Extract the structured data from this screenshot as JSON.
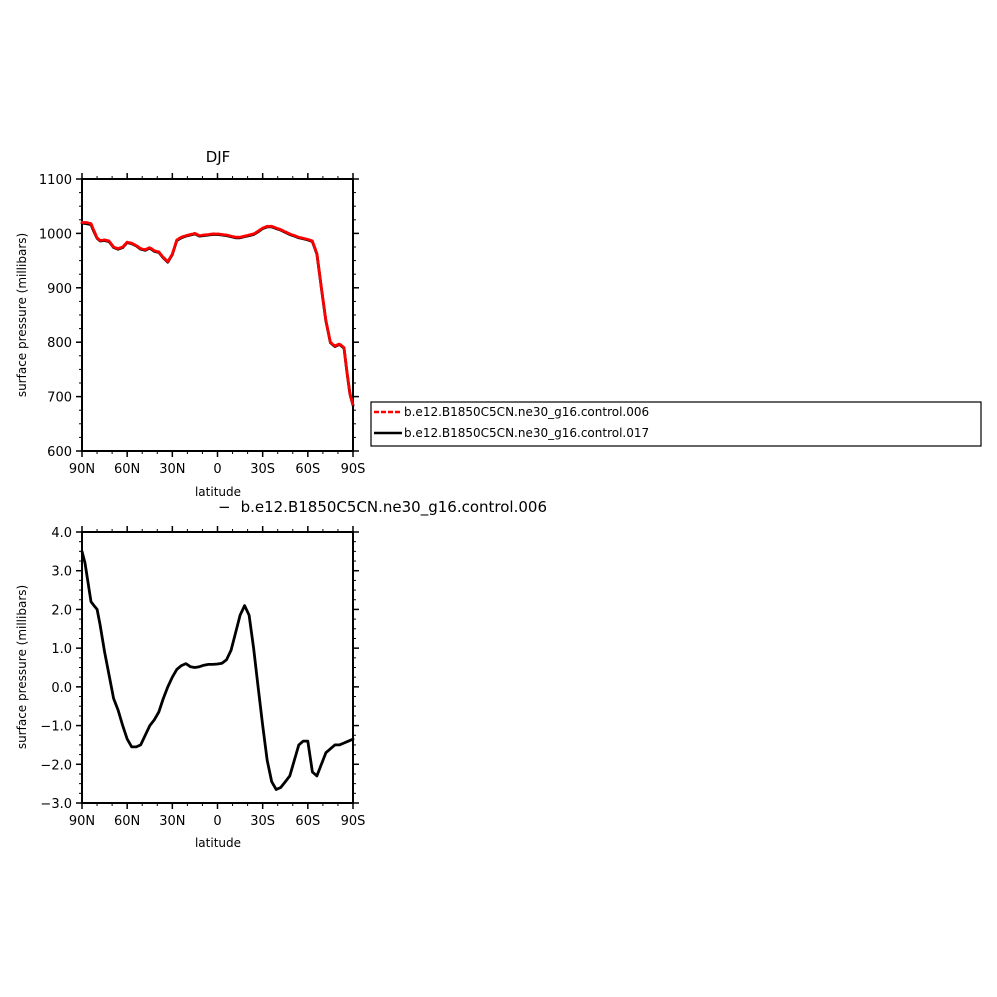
{
  "chart_data": [
    {
      "type": "line",
      "title": "DJF",
      "xlabel": "latitude",
      "ylabel": "surface pressure (millibars)",
      "xlim": [
        90,
        -90
      ],
      "ylim": [
        600,
        1100
      ],
      "x_ticks": [
        90,
        60,
        30,
        0,
        -30,
        -60,
        -90
      ],
      "x_tick_labels": [
        "90N",
        "60N",
        "30N",
        "0",
        "30S",
        "60S",
        "90S"
      ],
      "y_ticks": [
        600,
        700,
        800,
        900,
        1000,
        1100
      ],
      "y_tick_labels": [
        "600",
        "700",
        "800",
        "900",
        "1000",
        "1100"
      ],
      "grid": false,
      "legend": {
        "placement": "right",
        "entries": [
          "b.e12.B1850C5CN.ne30_g16.control.006",
          "b.e12.B1850C5CN.ne30_g16.control.017"
        ]
      },
      "series": [
        {
          "name": "b.e12.B1850C5CN.ne30_g16.control.006",
          "color": "#ff0000",
          "dash": true,
          "x": [
            90,
            87,
            84,
            82,
            80,
            78,
            75,
            72,
            69,
            66,
            63,
            60,
            57,
            54,
            51,
            48,
            45,
            42,
            39,
            36,
            33,
            30,
            27,
            24,
            21,
            18,
            15,
            12,
            9,
            6,
            3,
            0,
            -3,
            -6,
            -9,
            -12,
            -15,
            -18,
            -21,
            -24,
            -27,
            -30,
            -33,
            -36,
            -39,
            -42,
            -45,
            -48,
            -51,
            -54,
            -57,
            -60,
            -63,
            -66,
            -69,
            -72,
            -75,
            -78,
            -81,
            -84,
            -86,
            -88,
            -90
          ],
          "y": [
            1020,
            1020,
            1018,
            1005,
            992,
            987,
            988,
            986,
            975,
            972,
            975,
            984,
            982,
            978,
            972,
            970,
            974,
            968,
            966,
            956,
            948,
            962,
            988,
            993,
            996,
            998,
            1000,
            996,
            997,
            998,
            999,
            999,
            998,
            997,
            995,
            993,
            993,
            995,
            997,
            999,
            1004,
            1010,
            1013,
            1013,
            1010,
            1007,
            1003,
            999,
            996,
            993,
            991,
            989,
            986,
            963,
            900,
            840,
            800,
            793,
            797,
            790,
            745,
            705,
            685
          ]
        },
        {
          "name": "b.e12.B1850C5CN.ne30_g16.control.017",
          "color": "#000000",
          "dash": false,
          "x": [
            90,
            87,
            84,
            82,
            80,
            78,
            75,
            72,
            69,
            66,
            63,
            60,
            57,
            54,
            51,
            48,
            45,
            42,
            39,
            36,
            33,
            30,
            27,
            24,
            21,
            18,
            15,
            12,
            9,
            6,
            3,
            0,
            -3,
            -6,
            -9,
            -12,
            -15,
            -18,
            -21,
            -24,
            -27,
            -30,
            -33,
            -36,
            -39,
            -42,
            -45,
            -48,
            -51,
            -54,
            -57,
            -60,
            -63,
            -66,
            -69,
            -72,
            -75,
            -78,
            -81,
            -84,
            -86,
            -88,
            -90
          ],
          "y": [
            1019,
            1018,
            1016,
            1003,
            991,
            986,
            987,
            985,
            974,
            971,
            974,
            983,
            981,
            977,
            971,
            969,
            973,
            967,
            965,
            955,
            947,
            961,
            987,
            992,
            995,
            997,
            999,
            995,
            996,
            997,
            998,
            998,
            997,
            996,
            994,
            992,
            992,
            994,
            996,
            998,
            1003,
            1009,
            1012,
            1012,
            1009,
            1006,
            1002,
            998,
            995,
            992,
            990,
            988,
            985,
            962,
            899,
            839,
            799,
            792,
            796,
            789,
            744,
            704,
            684
          ]
        }
      ]
    },
    {
      "type": "line",
      "title": "b.e12.B1850C5CN.ne30_g16.control.006",
      "title_prefix": "−",
      "xlabel": "latitude",
      "ylabel": "surface pressure (millibars)",
      "xlim": [
        90,
        -90
      ],
      "ylim": [
        -3.0,
        4.0
      ],
      "x_ticks": [
        90,
        60,
        30,
        0,
        -30,
        -60,
        -90
      ],
      "x_tick_labels": [
        "90N",
        "60N",
        "30N",
        "0",
        "30S",
        "60S",
        "90S"
      ],
      "y_ticks": [
        -3.0,
        -2.0,
        -1.0,
        0.0,
        1.0,
        2.0,
        3.0,
        4.0
      ],
      "y_tick_labels": [
        "−3.0",
        "−2.0",
        "−1.0",
        "0.0",
        "1.0",
        "2.0",
        "3.0",
        "4.0"
      ],
      "grid": false,
      "series": [
        {
          "color": "#000000",
          "dash": false,
          "x": [
            90,
            88,
            86,
            84,
            82,
            80,
            78,
            75,
            72,
            69,
            66,
            63,
            60,
            57,
            54,
            51,
            48,
            45,
            42,
            39,
            36,
            33,
            30,
            27,
            24,
            21,
            18,
            15,
            12,
            9,
            6,
            3,
            0,
            -3,
            -6,
            -9,
            -12,
            -15,
            -18,
            -21,
            -24,
            -27,
            -30,
            -33,
            -36,
            -39,
            -42,
            -45,
            -48,
            -51,
            -54,
            -57,
            -60,
            -63,
            -66,
            -69,
            -72,
            -75,
            -78,
            -81,
            -84,
            -87,
            -90
          ],
          "y": [
            3.5,
            3.2,
            2.7,
            2.2,
            2.1,
            2.0,
            1.6,
            0.9,
            0.3,
            -0.3,
            -0.6,
            -1.0,
            -1.35,
            -1.55,
            -1.55,
            -1.5,
            -1.25,
            -1.0,
            -0.85,
            -0.65,
            -0.3,
            0.0,
            0.25,
            0.45,
            0.55,
            0.6,
            0.52,
            0.5,
            0.52,
            0.56,
            0.58,
            0.58,
            0.59,
            0.61,
            0.7,
            0.95,
            1.4,
            1.85,
            2.1,
            1.85,
            1.0,
            0.0,
            -1.0,
            -1.9,
            -2.45,
            -2.65,
            -2.6,
            -2.45,
            -2.3,
            -1.9,
            -1.5,
            -1.4,
            -1.4,
            -2.2,
            -2.3,
            -2.0,
            -1.7,
            -1.6,
            -1.5,
            -1.5,
            -1.45,
            -1.4,
            -1.35
          ]
        }
      ]
    }
  ]
}
